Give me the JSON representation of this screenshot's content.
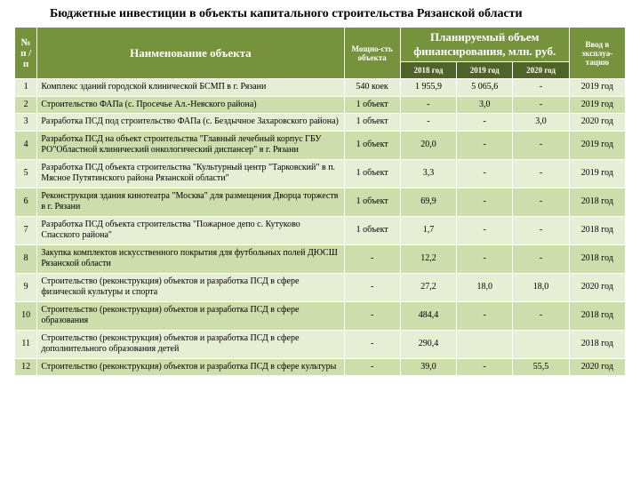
{
  "title": "Бюджетные инвестиции в объекты капитального строительства Рязанской области",
  "colors": {
    "header_bg": "#76923c",
    "subheader_bg": "#4f6228",
    "header_fg": "#ffffff",
    "row_odd_bg": "#e6eed5",
    "row_even_bg": "#cdddac",
    "page_bg": "#ffffff"
  },
  "columns": {
    "index": "№ п / п",
    "name": "Наименование объекта",
    "capacity": "Мощно-сть объекта",
    "financing_group": "Планируемый объем финансирования, млн. руб.",
    "commissioning": "Ввод в эксплуа-тацию",
    "years": [
      "2018 год",
      "2019 год",
      "2020 год"
    ]
  },
  "rows": [
    {
      "idx": "1",
      "name": "Комплекс зданий городской клинической БСМП в г. Рязани",
      "capacity": "540 коек",
      "y2018": "1 955,9",
      "y2019": "5 065,6",
      "y2020": "-",
      "commissioning": "2019 год"
    },
    {
      "idx": "2",
      "name": "Строительство ФАПа (с. Просечье Ал.-Невского района)",
      "capacity": "1 объект",
      "y2018": "-",
      "y2019": "3,0",
      "y2020": "-",
      "commissioning": "2019 год"
    },
    {
      "idx": "3",
      "name": "Разработка ПСД под строительство ФАПа (с. Бездычное Захаровского района)",
      "capacity": "1 объект",
      "y2018": "-",
      "y2019": "-",
      "y2020": "3,0",
      "commissioning": "2020 год"
    },
    {
      "idx": "4",
      "name": " Разработка ПСД на объект строительства \"Главный лечебный корпус ГБУ РО\"Областной клинический онкологический диспансер\" в г. Рязани",
      "capacity": "1 объект",
      "y2018": "20,0",
      "y2019": "-",
      "y2020": "-",
      "commissioning": "2019 год"
    },
    {
      "idx": "5",
      "name": "Разработка ПСД объекта строительства \"Культурный центр \"Тарковский\" в п. Мясное Путятинского района Рязанской области\"",
      "capacity": "1 объект",
      "y2018": "3,3",
      "y2019": "-",
      "y2020": "-",
      "commissioning": "2019 год"
    },
    {
      "idx": "6",
      "name": "Реконструкция здания кинотеатра \"Москва\" для размещения Дворца торжеств в г. Рязани",
      "capacity": "1 объект",
      "y2018": "69,9",
      "y2019": "-",
      "y2020": "-",
      "commissioning": "2018 год"
    },
    {
      "idx": "7",
      "name": "Разработка ПСД объекта строительства \"Пожарное депо с. Кутуково Спасского района\"",
      "capacity": "1 объект",
      "y2018": "1,7",
      "y2019": "-",
      "y2020": "-",
      "commissioning": "2018 год"
    },
    {
      "idx": "8",
      "name": "Закупка комплектов искусственного покрытия для футбольных полей ДЮСШ Рязанской области",
      "capacity": "-",
      "y2018": "12,2",
      "y2019": "-",
      "y2020": "-",
      "commissioning": "2018 год"
    },
    {
      "idx": "9",
      "name": "Строительство (реконструкция) объектов и разработка ПСД в сфере физической культуры и спорта",
      "capacity": "-",
      "y2018": "27,2",
      "y2019": "18,0",
      "y2020": "18,0",
      "commissioning": "2020 год"
    },
    {
      "idx": "10",
      "name": "Строительство (реконструкция) объектов и разработка ПСД в сфере образования",
      "capacity": "-",
      "y2018": "484,4",
      "y2019": "-",
      "y2020": "-",
      "commissioning": "2018 год"
    },
    {
      "idx": "11",
      "name": "Строительство (реконструкция) объектов и разработка ПСД в сфере дополнительного образования детей",
      "capacity": "-",
      "y2018": "290,4",
      "y2019": "",
      "y2020": "",
      "commissioning": "2018 год"
    },
    {
      "idx": "12",
      "name": "Строительство (реконструкция) объектов и разработка ПСД в сфере культуры",
      "capacity": "-",
      "y2018": "39,0",
      "y2019": "-",
      "y2020": "55,5",
      "commissioning": "2020 год"
    }
  ]
}
